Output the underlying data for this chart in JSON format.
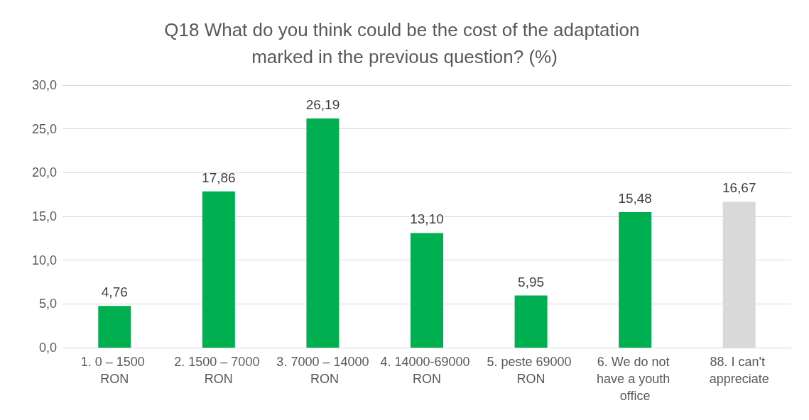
{
  "chart_data": {
    "type": "bar",
    "title": "Q18 What do you think could be the cost of the adaptation marked in the previous question? (%)",
    "categories": [
      "1. 0 – 1500 RON",
      "2. 1500 – 7000 RON",
      "3. 7000 – 14000 RON",
      "4. 14000-69000 RON",
      "5. peste 69000 RON",
      "6. We do not have a youth office",
      "88. I can't appreciate"
    ],
    "values": [
      4.76,
      17.86,
      26.19,
      13.1,
      5.95,
      15.48,
      16.67
    ],
    "value_labels": [
      "4,76",
      "17,86",
      "26,19",
      "13,10",
      "5,95",
      "15,48",
      "16,67"
    ],
    "colors": [
      "#00b050",
      "#00b050",
      "#00b050",
      "#00b050",
      "#00b050",
      "#00b050",
      "#d9d9d9"
    ],
    "ylim": [
      0,
      30
    ],
    "yticks": [
      {
        "value": 0,
        "label": "0,0"
      },
      {
        "value": 5,
        "label": "5,0"
      },
      {
        "value": 10,
        "label": "10,0"
      },
      {
        "value": 15,
        "label": "15,0"
      },
      {
        "value": 20,
        "label": "20,0"
      },
      {
        "value": 25,
        "label": "25,0"
      },
      {
        "value": 30,
        "label": "30,0"
      }
    ],
    "grid": "y"
  }
}
